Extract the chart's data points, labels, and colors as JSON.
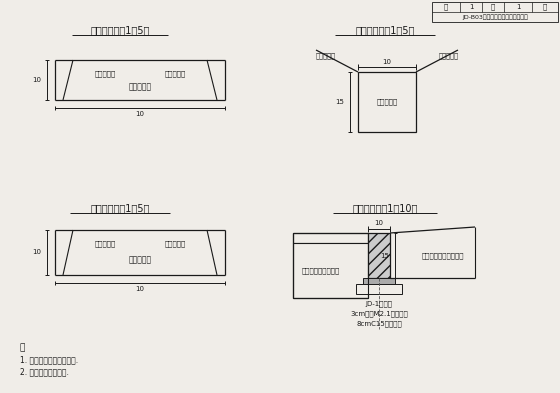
{
  "bg_color": "#f0ede8",
  "line_color": "#1a1a1a",
  "panel_titles": [
    "边石立面图（1：5）",
    "边石侧面图（1：5）",
    "边石平面图（1：5）",
    "边石安装图（1：10）"
  ],
  "notes_title": "注",
  "notes": [
    "1. 本图尺寸单位均为厘米.",
    "2. 详见相关各节详图."
  ],
  "header_text": "JD-B03型边石构造及安装节点详图",
  "label_left_chamfer": "机械磨切面",
  "label_right_chamfer": "机械磨切面",
  "label_center": "机械磨切面",
  "label_road_left": "路面磨切面",
  "label_road_right": "路面磨切面",
  "label_install_left": "固区人车用道路结构",
  "label_install_right": "路区车辆交通道路结构",
  "label_jd": "JD-1型边石",
  "label_mortar": "3cm中砂M2.1水泥砂浆",
  "label_concrete": "8cmC15灰土垫层"
}
